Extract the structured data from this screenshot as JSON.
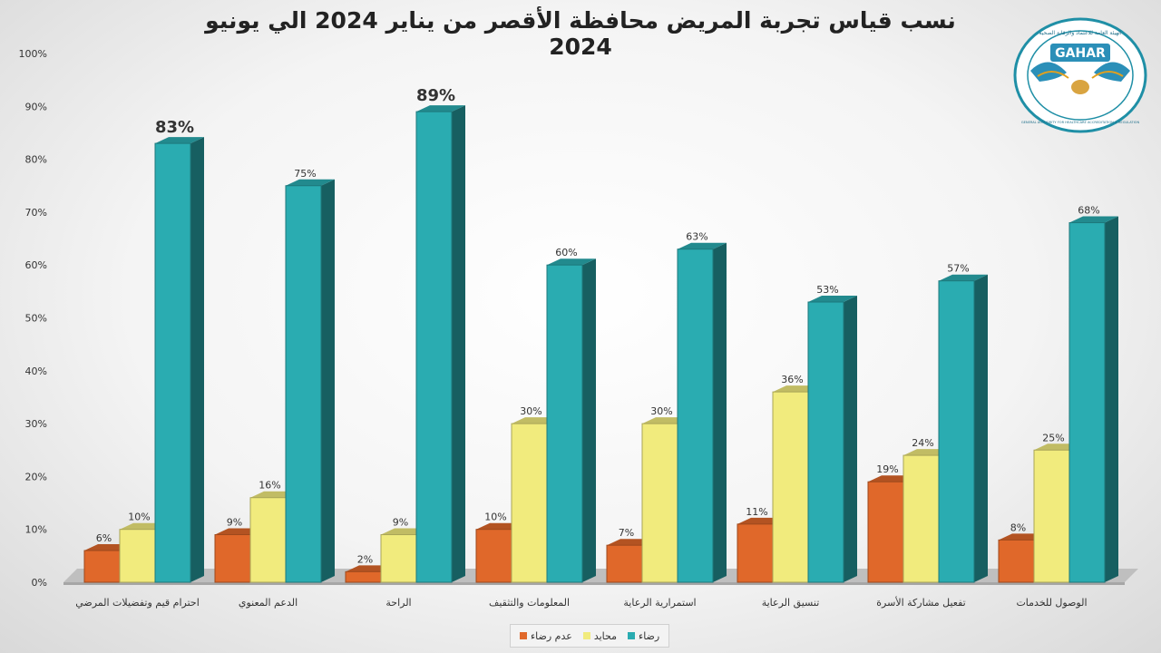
{
  "title": "نسب قياس تجربة المريض محافظة الأقصر من يناير 2024 الي يونيو 2024",
  "logo": {
    "text": "GAHAR",
    "arabic_text": "الهيئة العامة للاعتماد والرقابة الصحية",
    "english_text": "GENERAL AUTHORITY FOR HEALTHCARE ACCREDITATION & REGULATION"
  },
  "chart_data": {
    "type": "bar",
    "categories": [
      "احترام قيم وتفضيلات المرضي",
      "الدعم المعنوي",
      "الراحة",
      "المعلومات والتثقيف",
      "استمرارية الرعاية",
      "تنسيق الرعاية",
      "تفعيل مشاركة الأسرة",
      "الوصول للخدمات"
    ],
    "series": [
      {
        "name": "عدم رضاء",
        "color": "#e0682a",
        "values": [
          6,
          9,
          2,
          10,
          7,
          11,
          19,
          8
        ]
      },
      {
        "name": "محايد",
        "color": "#f1eb7d",
        "values": [
          10,
          16,
          9,
          30,
          30,
          36,
          24,
          25
        ]
      },
      {
        "name": "رضاء",
        "color": "#2aacb1",
        "values": [
          83,
          75,
          89,
          60,
          63,
          53,
          57,
          68
        ]
      }
    ],
    "data_labels": [
      [
        "6%",
        "10%",
        "83%"
      ],
      [
        "9%",
        "16%",
        "75%"
      ],
      [
        "2%",
        "9%",
        "89%"
      ],
      [
        "10%",
        "30%",
        "60%"
      ],
      [
        "7%",
        "30%",
        "63%"
      ],
      [
        "11%",
        "36%",
        "53%"
      ],
      [
        "19%",
        "24%",
        "57%"
      ],
      [
        "8%",
        "25%",
        "68%"
      ]
    ],
    "emphasized_labels": [
      "83%",
      "89%"
    ],
    "y_ticks": [
      "0%",
      "10%",
      "20%",
      "30%",
      "40%",
      "50%",
      "60%",
      "70%",
      "80%",
      "90%",
      "100%"
    ],
    "ylim": [
      0,
      100
    ],
    "grid": false,
    "legend_position": "bottom"
  }
}
